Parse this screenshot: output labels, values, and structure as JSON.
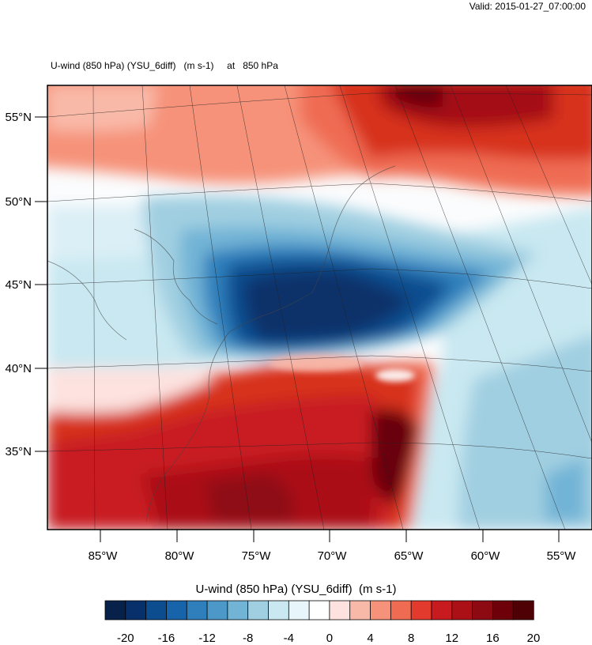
{
  "valid_time": "Valid: 2015-01-27_07:00:00",
  "title": "U-wind (850 hPa) (YSU_6diff)   (m s-1)     at   850 hPa",
  "map": {
    "variable": "U-wind (850 hPa) (YSU_6diff)",
    "units": "m s-1",
    "level": "850 hPa",
    "lat_labels": [
      "55°N",
      "50°N",
      "45°N",
      "40°N",
      "35°N"
    ],
    "lon_labels": [
      "85°W",
      "80°W",
      "75°W",
      "70°W",
      "65°W",
      "60°W",
      "55°W"
    ]
  },
  "colorbar": {
    "title": "U-wind (850 hPa) (YSU_6diff)  (m s-1)",
    "labels": [
      "-20",
      "-16",
      "-12",
      "-8",
      "-4",
      "0",
      "4",
      "8",
      "12",
      "16",
      "20"
    ],
    "colors": [
      "#08214a",
      "#08306b",
      "#0b4d8f",
      "#1764ab",
      "#2f7fbc",
      "#4b98c9",
      "#72b4d6",
      "#a0cfe1",
      "#c9e8f1",
      "#e8f6fb",
      "#ffffff",
      "#fde2df",
      "#f9b9a8",
      "#f69279",
      "#ef6c53",
      "#e23b2e",
      "#c81b20",
      "#ab1016",
      "#8e0a12",
      "#6e0009",
      "#4f0004"
    ]
  }
}
